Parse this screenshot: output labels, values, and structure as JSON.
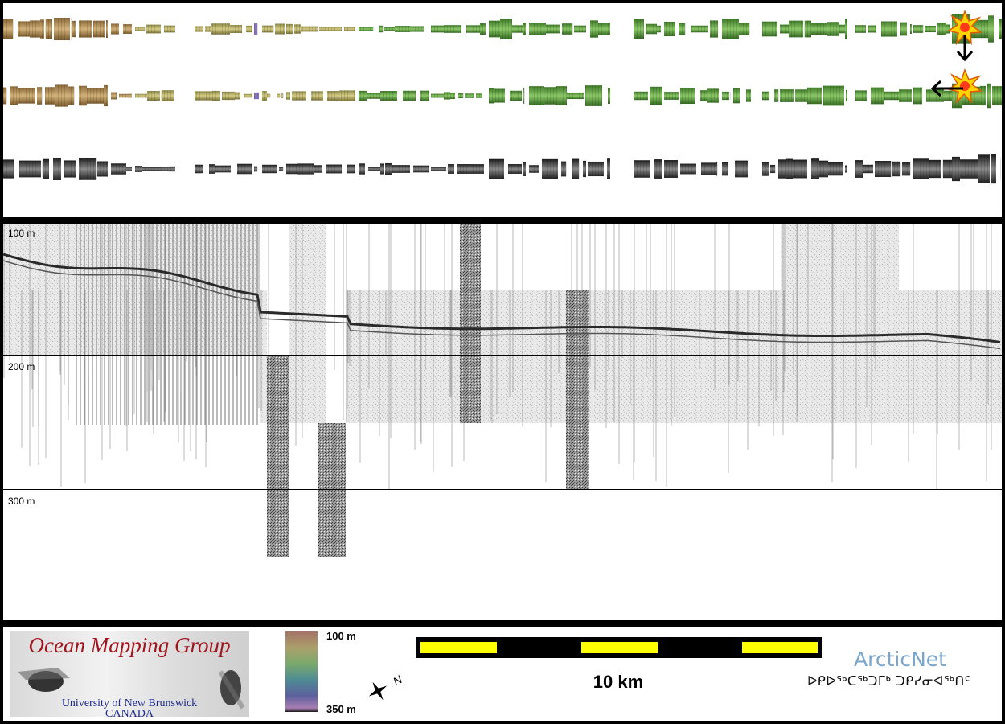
{
  "profile": {
    "depth_labels": [
      "100 m",
      "200 m",
      "300 m"
    ]
  },
  "legend": {
    "logo_title": "Ocean Mapping Group",
    "logo_university": "University of New Brunswick",
    "logo_country": "CANADA",
    "colorbar_top": "100 m",
    "colorbar_bottom": "350 m",
    "north_label": "N",
    "scale_label": "10 km",
    "arcticnet_name": "ArcticNet",
    "arcticnet_syllabics": "ᐅᑭᐅᖅᑕᖅᑐᒥᒃ ᑐᑭᓯᓂᐊᖅᑎᑦ"
  },
  "colors": {
    "panel_border": "#000000",
    "scale_yellow": "#ffff00",
    "omg_red": "#a0141e",
    "omg_blue": "#1c2a8c",
    "arcticnet_blue": "#7aa6cc",
    "swath_tan": "#b8975a",
    "swath_green": "#5f9a3e",
    "swath_gray": "#5a5a5a"
  },
  "icons": {
    "sun_light_1": "sun-illumination-icon",
    "sun_light_2": "sun-illumination-icon",
    "arrow_down": "arrow-down-icon",
    "arrow_left": "arrow-left-icon",
    "north_arrow": "north-arrow-icon"
  }
}
